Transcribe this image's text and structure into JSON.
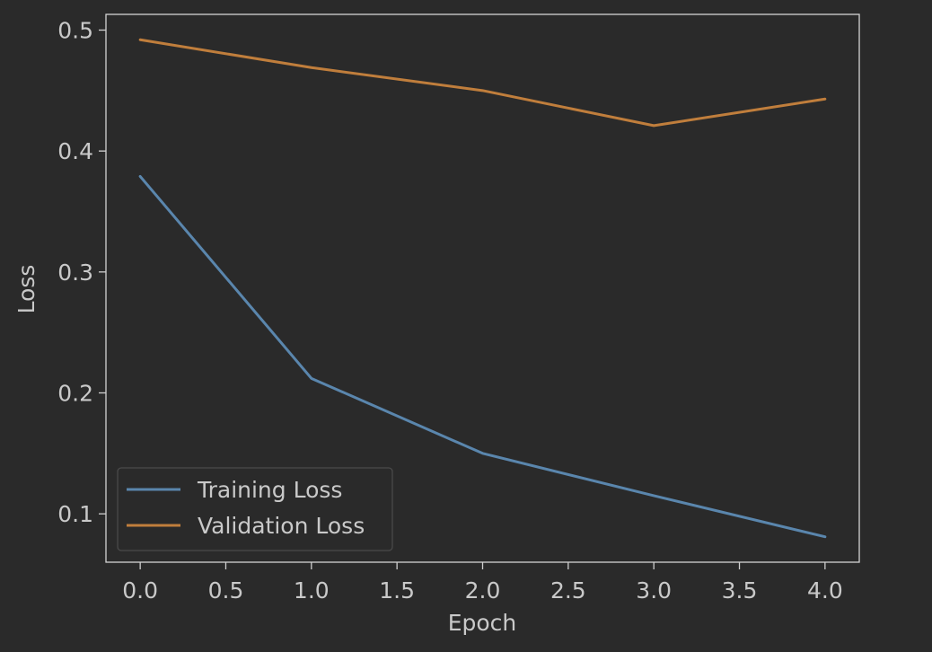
{
  "chart_data": {
    "type": "line",
    "title": "",
    "xlabel": "Epoch",
    "ylabel": "Loss",
    "x": [
      0,
      1,
      2,
      3,
      4
    ],
    "xlim": [
      -0.2,
      4.2
    ],
    "ylim": [
      0.06,
      0.513
    ],
    "xticks": [
      "0.0",
      "0.5",
      "1.0",
      "1.5",
      "2.0",
      "2.5",
      "3.0",
      "3.5",
      "4.0"
    ],
    "yticks": [
      "0.1",
      "0.2",
      "0.3",
      "0.4",
      "0.5"
    ],
    "grid": false,
    "legend_position": "lower-left",
    "series": [
      {
        "name": "Training Loss",
        "color": "#5a86ad",
        "values": [
          0.379,
          0.212,
          0.15,
          0.115,
          0.081
        ]
      },
      {
        "name": "Validation Loss",
        "color": "#c07e3c",
        "values": [
          0.492,
          0.469,
          0.45,
          0.421,
          0.443
        ]
      }
    ]
  }
}
